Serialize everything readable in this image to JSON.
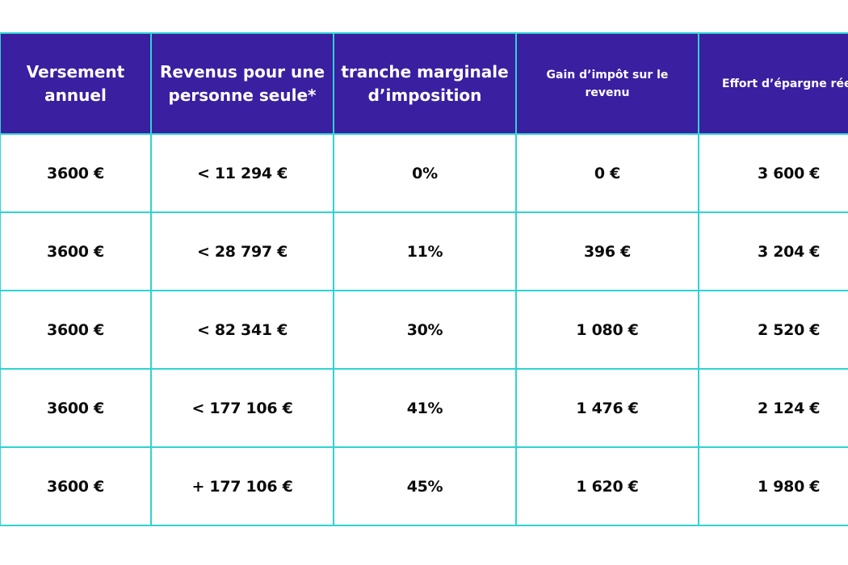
{
  "table": {
    "headers": [
      "Versement annuel",
      "Revenus pour une personne seule*",
      "tranche marginale d’imposition",
      "Gain d’impôt sur le revenu",
      "Effort d’épargne réel"
    ],
    "rows": [
      [
        "3600 €",
        "< 11 294 €",
        "0%",
        "0 €",
        "3 600 €"
      ],
      [
        "3600 €",
        "< 28 797 €",
        "11%",
        "396 €",
        "3 204 €"
      ],
      [
        "3600 €",
        "< 82 341 €",
        "30%",
        "1 080 €",
        "2 520 €"
      ],
      [
        "3600 €",
        "< 177 106 €",
        "41%",
        "1 476 €",
        "2 124 €"
      ],
      [
        "3600 €",
        "+ 177 106 €",
        "45%",
        "1 620 €",
        "1 980 €"
      ]
    ]
  },
  "colors": {
    "header_background": "#3a1fa0",
    "header_text": "#ffffff",
    "border": "#2fd3d3",
    "body_text": "#0b0b0b"
  }
}
